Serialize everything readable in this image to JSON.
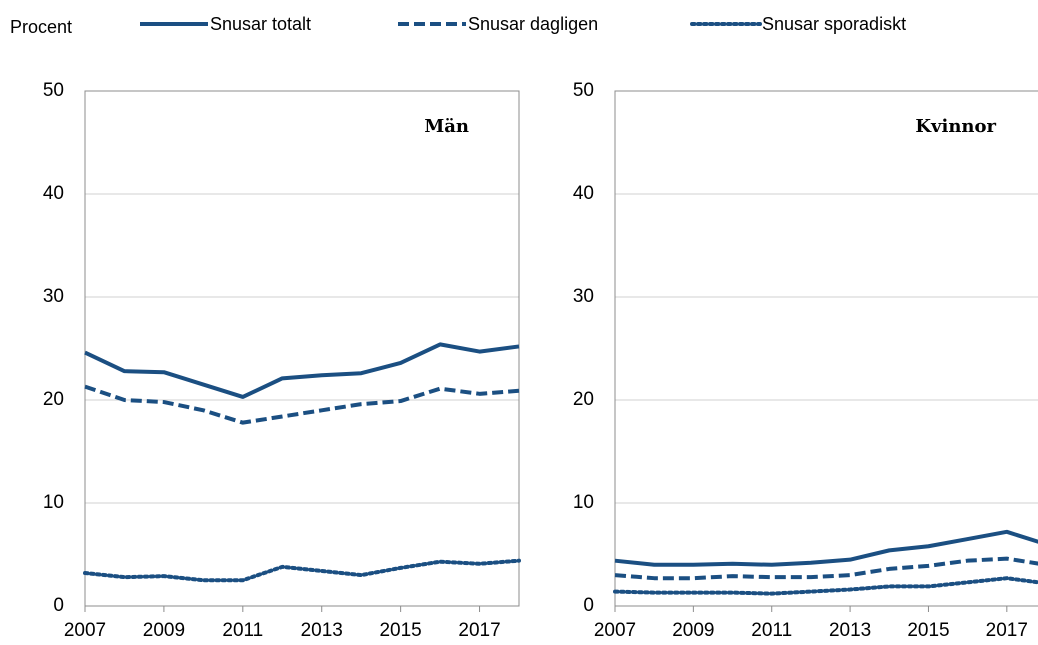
{
  "chart_data": [
    {
      "type": "line",
      "title": "Män",
      "ylabel": "Procent",
      "x": [
        2007,
        2008,
        2009,
        2010,
        2011,
        2012,
        2013,
        2014,
        2015,
        2016,
        2017,
        2018
      ],
      "xlim": [
        2007,
        2018
      ],
      "xticks": [
        2007,
        2009,
        2011,
        2013,
        2015,
        2017
      ],
      "ylim": [
        0,
        50
      ],
      "yticks": [
        0,
        10,
        20,
        30,
        40,
        50
      ],
      "grid": true,
      "series": [
        {
          "name": "Snusar totalt",
          "color": "#1b4f82",
          "dash": "solid",
          "values": [
            24.6,
            22.8,
            22.7,
            21.5,
            20.3,
            22.1,
            22.4,
            22.6,
            23.6,
            25.4,
            24.7,
            25.2
          ]
        },
        {
          "name": "Snusar dagligen",
          "color": "#1b4f82",
          "dash": "dashed",
          "values": [
            21.3,
            20.0,
            19.8,
            19.0,
            17.8,
            18.4,
            19.0,
            19.6,
            19.9,
            21.1,
            20.6,
            20.9
          ]
        },
        {
          "name": "Snusar sporadiskt",
          "color": "#1b4f82",
          "dash": "dotted",
          "values": [
            3.2,
            2.8,
            2.9,
            2.5,
            2.5,
            3.8,
            3.4,
            3.0,
            3.7,
            4.3,
            4.1,
            4.4
          ]
        }
      ]
    },
    {
      "type": "line",
      "title": "Kvinnor",
      "x": [
        2007,
        2008,
        2009,
        2010,
        2011,
        2012,
        2013,
        2014,
        2015,
        2016,
        2017,
        2018
      ],
      "xlim": [
        2007,
        2018
      ],
      "xticks": [
        2007,
        2009,
        2011,
        2013,
        2015,
        2017
      ],
      "ylim": [
        0,
        50
      ],
      "yticks": [
        0,
        10,
        20,
        30,
        40,
        50
      ],
      "grid": true,
      "series": [
        {
          "name": "Snusar totalt",
          "color": "#1b4f82",
          "dash": "solid",
          "values": [
            4.4,
            4.0,
            4.0,
            4.1,
            4.0,
            4.2,
            4.5,
            5.4,
            5.8,
            6.5,
            7.2,
            6.0
          ]
        },
        {
          "name": "Snusar dagligen",
          "color": "#1b4f82",
          "dash": "dashed",
          "values": [
            3.0,
            2.7,
            2.7,
            2.9,
            2.8,
            2.8,
            3.0,
            3.6,
            3.9,
            4.4,
            4.6,
            4.0
          ]
        },
        {
          "name": "Snusar sporadiskt",
          "color": "#1b4f82",
          "dash": "dotted",
          "values": [
            1.4,
            1.3,
            1.3,
            1.3,
            1.2,
            1.4,
            1.6,
            1.9,
            1.9,
            2.3,
            2.7,
            2.2
          ]
        }
      ]
    }
  ]
}
